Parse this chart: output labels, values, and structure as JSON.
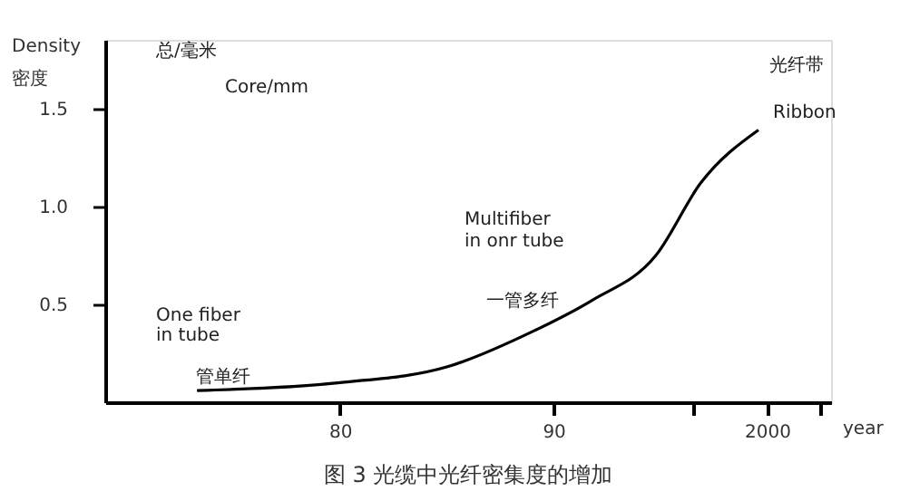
{
  "chart_data": {
    "type": "line",
    "title": "图 3 光缆中光纤密集度的增加",
    "ylabel": "Density\n密度",
    "xlabel": "year",
    "x": [
      1973.3,
      1980,
      1985,
      1989,
      1991.8,
      1994.8,
      1996.9,
      1999.6
    ],
    "series": [
      {
        "color": "#000000",
        "values": [
          0.06,
          0.1,
          0.18,
          0.36,
          0.52,
          0.75,
          1.12,
          1.39
        ]
      }
    ],
    "xlim": [
      1969,
      2003
    ],
    "xticks": [
      {
        "value": 1980,
        "label": "80"
      },
      {
        "value": 1990,
        "label": "90"
      },
      {
        "value": 1996.5,
        "label": null
      },
      {
        "value": 2000,
        "label": "2000"
      },
      {
        "value": 2002.5,
        "label": null
      }
    ],
    "ylim": [
      0,
      1.85
    ],
    "yticks": [
      0.5,
      {
        "value": 1,
        "label": "1.0"
      },
      1.5
    ],
    "annotations": [
      "总/毫米",
      "Core/mm",
      "One fiber",
      "in tube",
      "管单纤",
      "Multifiber",
      "in onr tube",
      "一管多纤",
      "光纤带",
      "Ribbon"
    ],
    "grid": false,
    "marker": "none",
    "line_style": "solid"
  }
}
